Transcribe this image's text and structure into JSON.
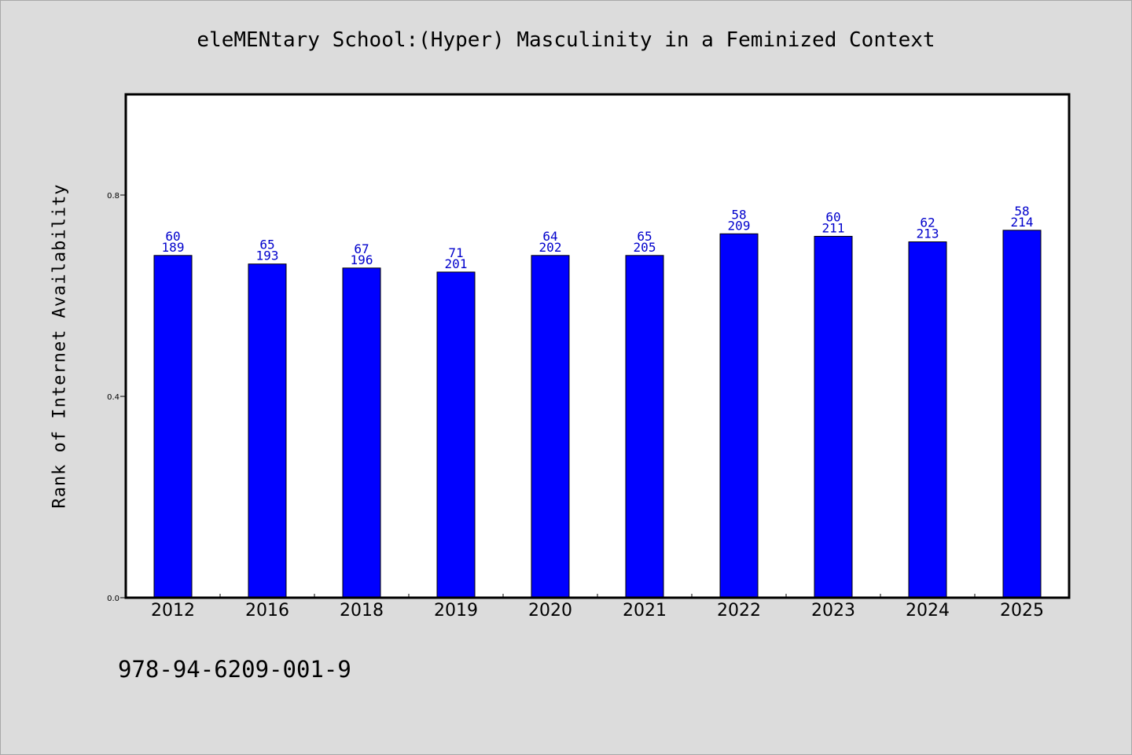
{
  "chart_data": {
    "type": "bar",
    "title": "eleMENtary School:(Hyper) Masculinity in a Feminized Context",
    "ylabel": "Rank of Internet Availability",
    "xlabel": "",
    "categories": [
      "2012",
      "2016",
      "2018",
      "2019",
      "2020",
      "2021",
      "2022",
      "2023",
      "2024",
      "2025"
    ],
    "values": [
      0.68,
      0.663,
      0.655,
      0.647,
      0.68,
      0.68,
      0.723,
      0.718,
      0.707,
      0.73
    ],
    "label_top": [
      "60",
      "65",
      "67",
      "71",
      "64",
      "65",
      "58",
      "60",
      "62",
      "58"
    ],
    "label_bottom": [
      "189",
      "193",
      "196",
      "201",
      "202",
      "205",
      "209",
      "211",
      "213",
      "214"
    ],
    "ylim": [
      0,
      1.0
    ],
    "yticks": [
      0.0,
      0.4,
      0.8
    ],
    "ytick_labels": [
      "0.0",
      "0.4",
      "0.8"
    ],
    "grid": false,
    "colors": {
      "bar": "#0000ff",
      "bar_edge": "#000000",
      "data_label": "#0000cc",
      "plot_background": "#ffffff",
      "page_background": "#dcdcdc"
    }
  },
  "footer": {
    "isbn": "978-94-6209-001-9"
  }
}
